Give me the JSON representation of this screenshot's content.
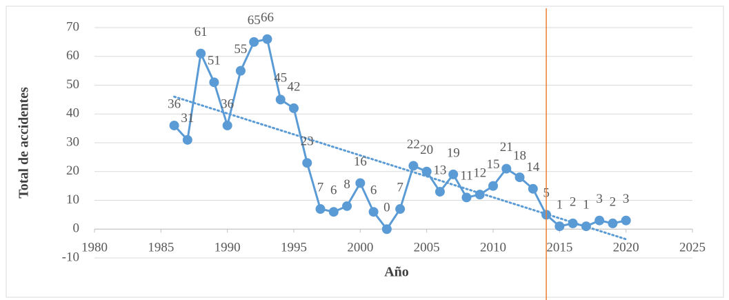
{
  "chart_data": {
    "type": "line",
    "x_label": "Año",
    "y_label": "Total de accidentes",
    "x": [
      1986,
      1987,
      1988,
      1989,
      1990,
      1991,
      1992,
      1993,
      1994,
      1995,
      1996,
      1997,
      1998,
      1999,
      2000,
      2001,
      2002,
      2003,
      2004,
      2005,
      2006,
      2007,
      2008,
      2009,
      2010,
      2011,
      2012,
      2013,
      2014,
      2015,
      2016,
      2017,
      2018,
      2019,
      2020
    ],
    "values": [
      36,
      31,
      61,
      51,
      36,
      55,
      65,
      66,
      45,
      42,
      23,
      7,
      6,
      8,
      16,
      6,
      0,
      7,
      22,
      20,
      13,
      19,
      11,
      12,
      15,
      21,
      18,
      14,
      5,
      1,
      2,
      1,
      3,
      2,
      3
    ],
    "color": "#5b9bd5",
    "trend": {
      "x": [
        1986,
        2020
      ],
      "values": [
        46,
        -3.5
      ],
      "color": "#5b9bd5"
    },
    "vline": {
      "x": 2014,
      "color": "#ed7d31"
    },
    "xlim": [
      1980,
      2025
    ],
    "xticks": [
      1980,
      1985,
      1990,
      1995,
      2000,
      2005,
      2010,
      2015,
      2020,
      2025
    ],
    "ylim": [
      -10,
      70
    ],
    "yticks": [
      -10,
      0,
      10,
      20,
      30,
      40,
      50,
      60,
      70
    ],
    "grid": true
  }
}
